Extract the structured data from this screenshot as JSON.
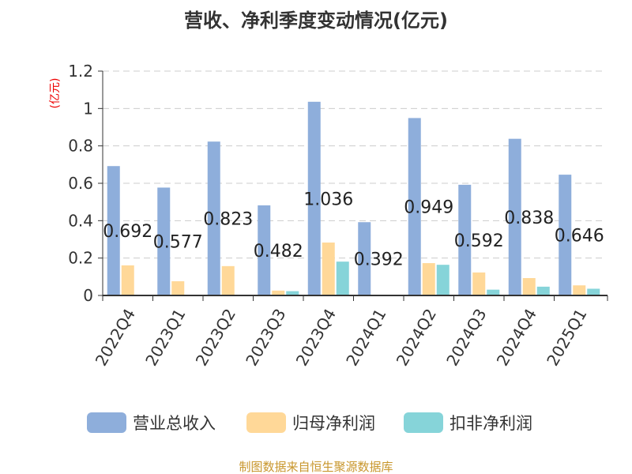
{
  "chart_data": {
    "type": "bar",
    "title": "营收、净利季度变动情况(亿元)",
    "ylabel": "(亿元)",
    "xlabel": "",
    "ylim": [
      0,
      1.2
    ],
    "yticks": [
      "0",
      "0.2",
      "0.4",
      "0.6",
      "0.8",
      "1",
      "1.2"
    ],
    "grid": true,
    "legend_position": "bottom",
    "categories": [
      "2022Q4",
      "2023Q1",
      "2023Q2",
      "2023Q3",
      "2023Q4",
      "2024Q1",
      "2024Q2",
      "2024Q3",
      "2024Q4",
      "2025Q1"
    ],
    "series": [
      {
        "name": "营业总收入",
        "color": "#8eaedb",
        "values": [
          0.692,
          0.577,
          0.823,
          0.482,
          1.036,
          0.392,
          0.949,
          0.592,
          0.838,
          0.646
        ],
        "labels": [
          "0.692",
          "0.577",
          "0.823",
          "0.482",
          "1.036",
          "0.392",
          "0.949",
          "0.592",
          "0.838",
          "0.646"
        ]
      },
      {
        "name": "归母净利润",
        "color": "#ffd898",
        "values": [
          0.161,
          0.076,
          0.157,
          0.026,
          0.283,
          0.002,
          0.173,
          0.123,
          0.093,
          0.054
        ]
      },
      {
        "name": "扣非净利润",
        "color": "#86d4d9",
        "values": [
          0,
          0,
          0,
          0.023,
          0.181,
          0.003,
          0.164,
          0.031,
          0.047,
          0.036
        ]
      }
    ]
  },
  "footer": "制图数据来自恒生聚源数据库"
}
